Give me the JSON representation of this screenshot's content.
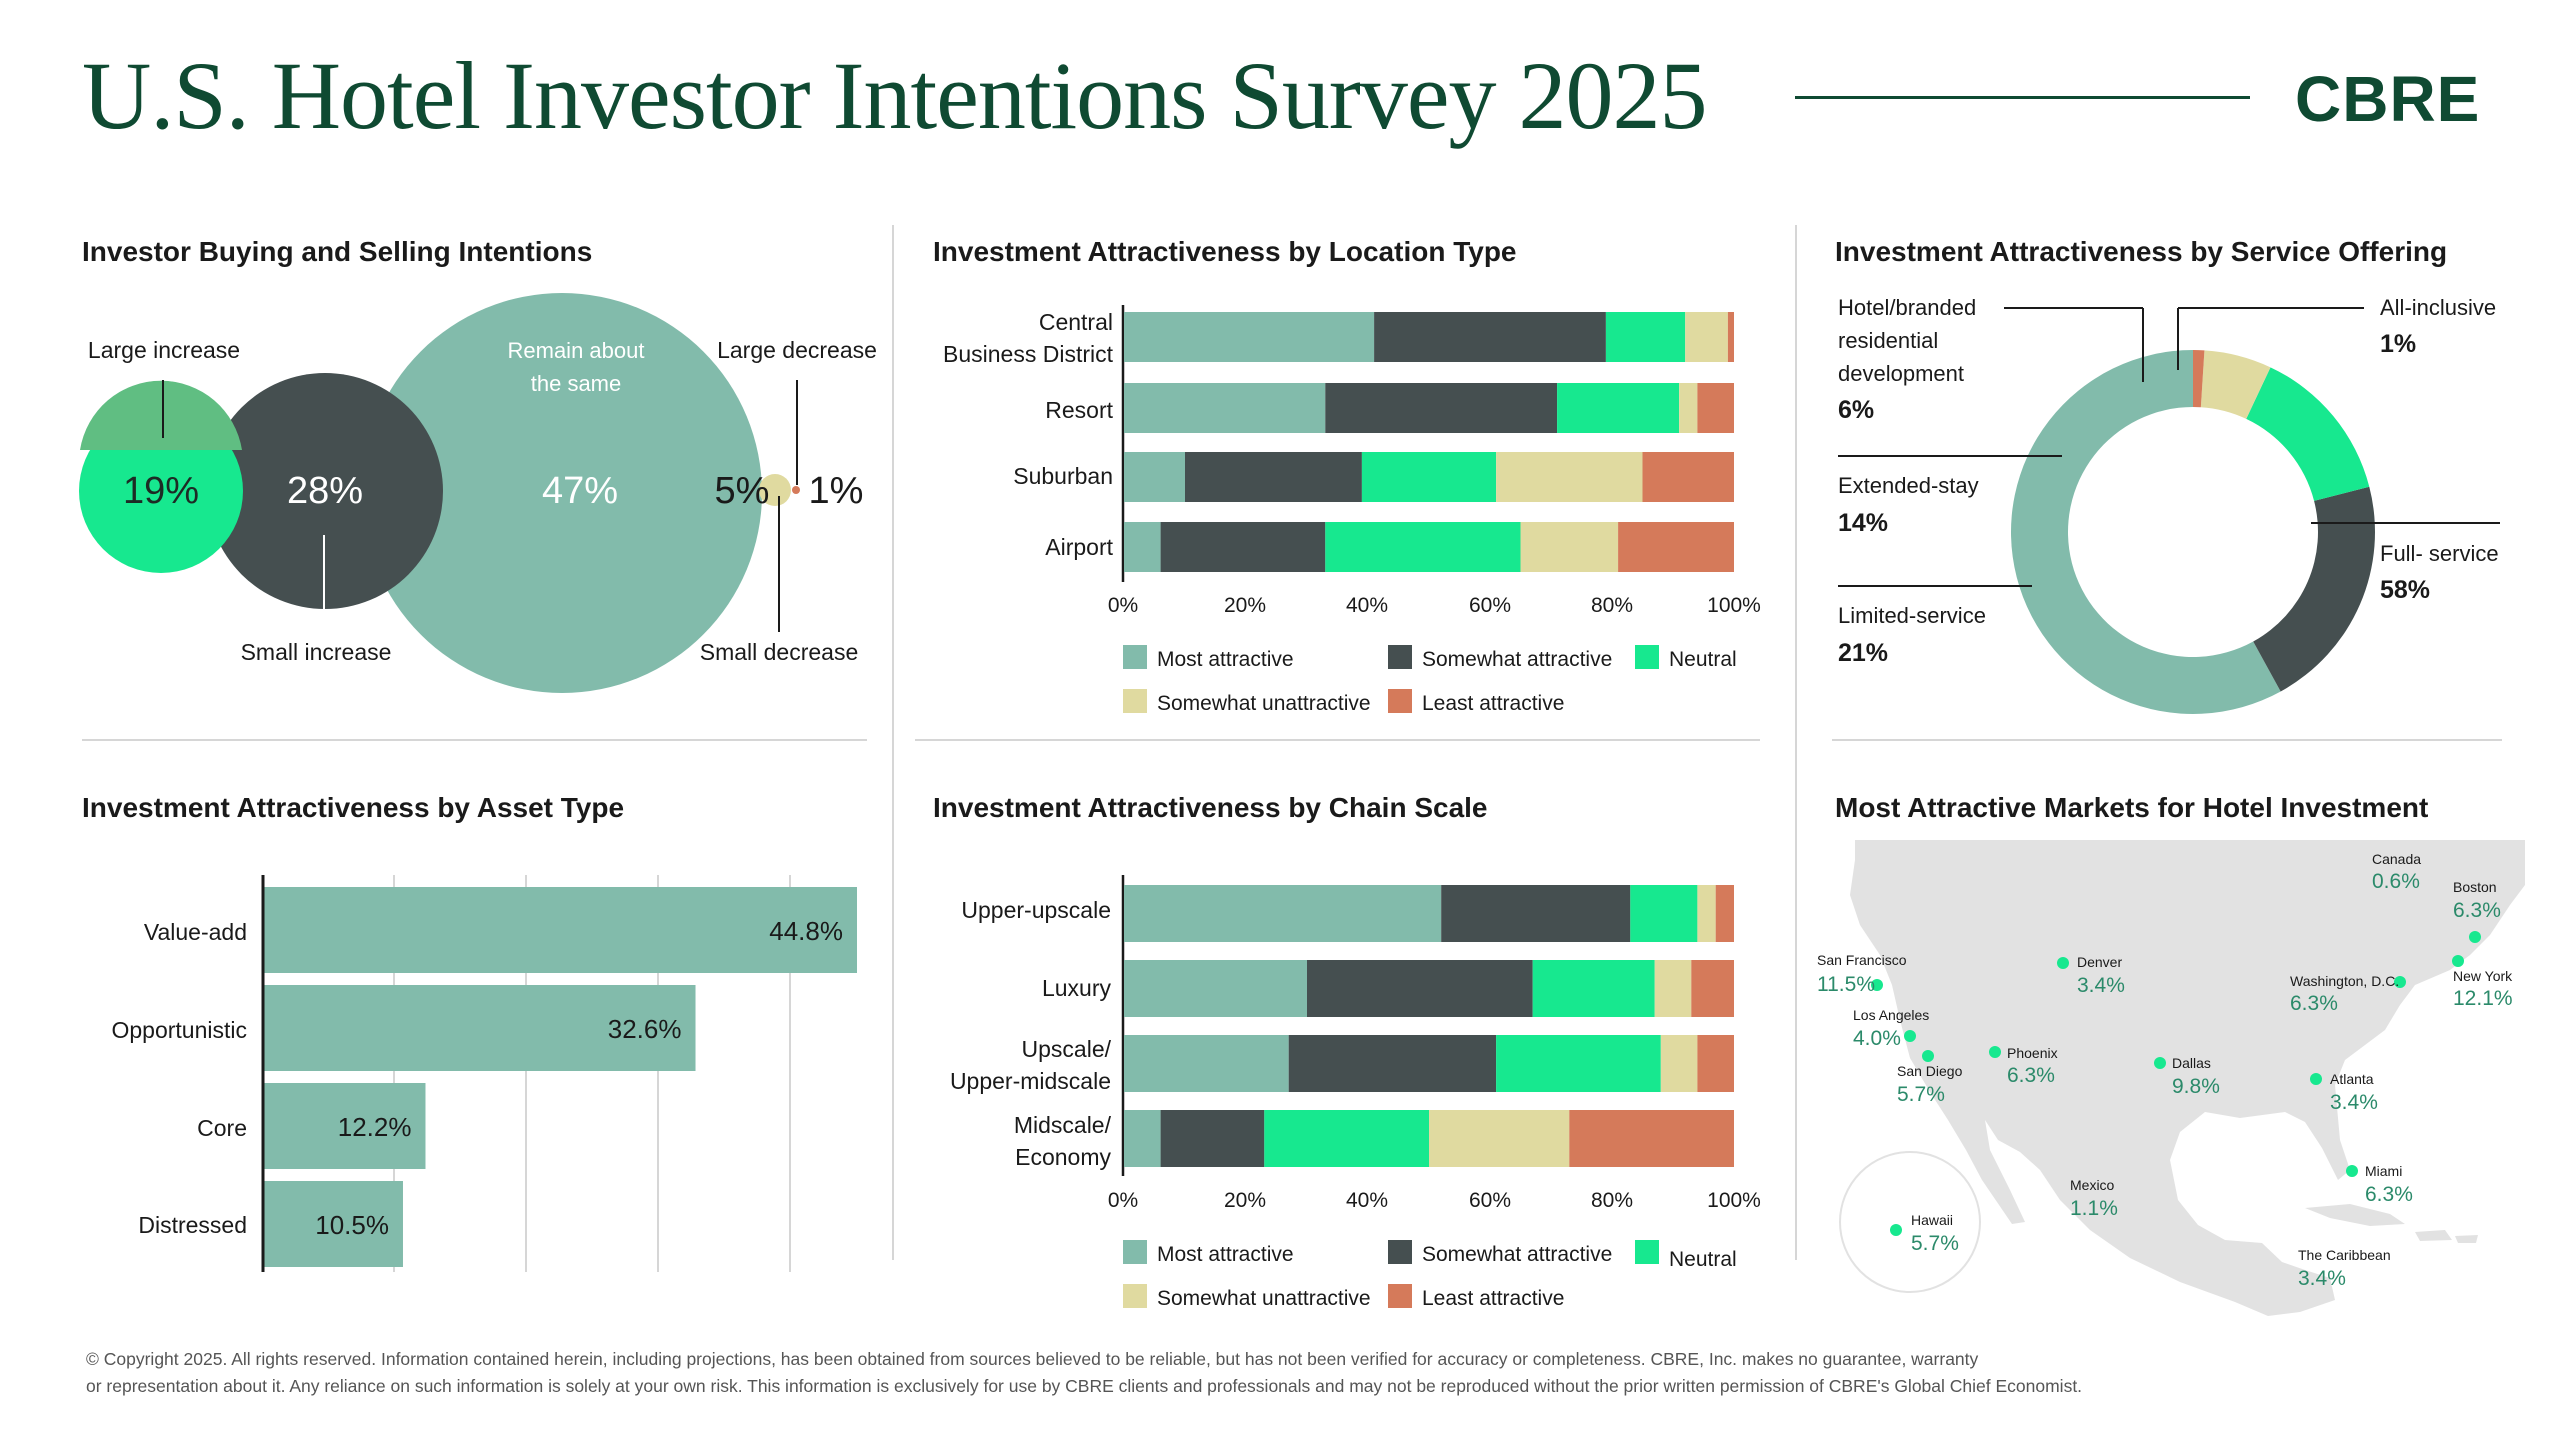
{
  "header": {
    "title": "U.S. Hotel Investor Intentions Survey 2025",
    "brand": "CBRE"
  },
  "colors": {
    "brand": "#0f4a32",
    "most_attractive": "#82bbab",
    "somewhat_attractive": "#454f50",
    "neutral": "#17e88f",
    "somewhat_unattractive": "#e0daa0",
    "least_attractive": "#d57a5a",
    "green_mid": "#60be82",
    "map_land": "#e2e2e2",
    "map_dot": "#17e88f"
  },
  "legend_labels": {
    "most": "Most attractive",
    "somewhat": "Somewhat attractive",
    "neutral": "Neutral",
    "unattractive": "Somewhat unattractive",
    "least": "Least attractive"
  },
  "panels": {
    "buying_selling": "Investor Buying and Selling Intentions",
    "location": "Investment Attractiveness by Location Type",
    "service": "Investment Attractiveness by Service Offering",
    "asset": "Investment Attractiveness by Asset Type",
    "chain": "Investment Attractiveness by Chain Scale",
    "markets": "Most Attractive Markets for Hotel Investment"
  },
  "chart_data": [
    {
      "id": "buying_selling",
      "type": "bubble",
      "items": [
        {
          "label": "Large increase",
          "value": 19,
          "display": "19%"
        },
        {
          "label": "Small increase",
          "value": 28,
          "display": "28%"
        },
        {
          "label": "Remain about the same",
          "value": 47,
          "display": "47%"
        },
        {
          "label": "Small decrease",
          "value": 5,
          "display": "5%"
        },
        {
          "label": "Large decrease",
          "value": 1,
          "display": "1%"
        }
      ],
      "label_lines": {
        "remain": [
          "Remain about",
          "the same"
        ]
      }
    },
    {
      "id": "location",
      "type": "bar",
      "orientation": "horizontal",
      "stacked": true,
      "categories": [
        [
          "Central",
          "Business District"
        ],
        [
          "Resort"
        ],
        [
          "Suburban"
        ],
        [
          "Airport"
        ]
      ],
      "series": [
        {
          "name": "Most attractive",
          "values": [
            41,
            33,
            10,
            6
          ]
        },
        {
          "name": "Somewhat attractive",
          "values": [
            38,
            38,
            29,
            27
          ]
        },
        {
          "name": "Neutral",
          "values": [
            13,
            20,
            22,
            32
          ]
        },
        {
          "name": "Somewhat unattractive",
          "values": [
            7,
            3,
            24,
            16
          ]
        },
        {
          "name": "Least attractive",
          "values": [
            1,
            6,
            15,
            19
          ]
        }
      ],
      "xlim": [
        0,
        100
      ],
      "xticks": [
        "0%",
        "20%",
        "40%",
        "60%",
        "80%",
        "100%"
      ],
      "legend": "bottom"
    },
    {
      "id": "service",
      "type": "pie",
      "donut": true,
      "slices": [
        {
          "label": "Full- service",
          "value": 58,
          "display": "58%"
        },
        {
          "label": "Limited-service",
          "value": 21,
          "display": "21%"
        },
        {
          "label": "Extended-stay",
          "value": 14,
          "display": "14%"
        },
        {
          "label": "Hotel/branded residential development",
          "value": 6,
          "display": "6%"
        },
        {
          "label": "All-inclusive",
          "value": 1,
          "display": "1%"
        }
      ],
      "label_lines": {
        "hotel": [
          "Hotel/branded",
          "residential",
          "development"
        ]
      }
    },
    {
      "id": "asset",
      "type": "bar",
      "orientation": "horizontal",
      "categories": [
        "Value-add",
        "Opportunistic",
        "Core",
        "Distressed"
      ],
      "values": [
        44.8,
        32.6,
        12.2,
        10.5
      ],
      "labels": [
        "44.8%",
        "32.6%",
        "12.2%",
        "10.5%"
      ]
    },
    {
      "id": "chain",
      "type": "bar",
      "orientation": "horizontal",
      "stacked": true,
      "categories": [
        [
          "Upper-upscale"
        ],
        [
          "Luxury"
        ],
        [
          "Upscale/",
          "Upper-midscale"
        ],
        [
          "Midscale/",
          "Economy"
        ]
      ],
      "series": [
        {
          "name": "Most attractive",
          "values": [
            52,
            30,
            27,
            6
          ]
        },
        {
          "name": "Somewhat attractive",
          "values": [
            31,
            37,
            34,
            17
          ]
        },
        {
          "name": "Neutral",
          "values": [
            11,
            20,
            27,
            27
          ]
        },
        {
          "name": "Somewhat unattractive",
          "values": [
            3,
            6,
            6,
            23
          ]
        },
        {
          "name": "Least attractive",
          "values": [
            3,
            7,
            6,
            27
          ]
        }
      ],
      "xlim": [
        0,
        100
      ],
      "xticks": [
        "0%",
        "20%",
        "40%",
        "60%",
        "80%",
        "100%"
      ],
      "legend": "bottom"
    },
    {
      "id": "markets",
      "type": "map",
      "markets": [
        {
          "name": "Canada",
          "value": "0.6%"
        },
        {
          "name": "Boston",
          "value": "6.3%"
        },
        {
          "name": "San Francisco",
          "value": "11.5%"
        },
        {
          "name": "Denver",
          "value": "3.4%"
        },
        {
          "name": "Washington, D.C.",
          "value": "6.3%"
        },
        {
          "name": "New York",
          "value": "12.1%"
        },
        {
          "name": "Los Angeles",
          "value": "4.0%"
        },
        {
          "name": "San Diego",
          "value": "5.7%"
        },
        {
          "name": "Phoenix",
          "value": "6.3%"
        },
        {
          "name": "Dallas",
          "value": "9.8%"
        },
        {
          "name": "Atlanta",
          "value": "3.4%"
        },
        {
          "name": "Miami",
          "value": "6.3%"
        },
        {
          "name": "Mexico",
          "value": "1.1%"
        },
        {
          "name": "Hawaii",
          "value": "5.7%"
        },
        {
          "name": "The Caribbean",
          "value": "3.4%"
        }
      ]
    }
  ],
  "footer": {
    "line1": "© Copyright 2025. All rights reserved. Information contained herein, including projections, has been obtained from sources believed to be reliable, but has not been verified for accuracy or completeness. CBRE, Inc. makes no guarantee, warranty",
    "line2": "or representation about it. Any reliance on such information is solely at your own risk. This information is exclusively for use by CBRE clients and professionals and may not be reproduced without the prior written permission of CBRE's Global Chief Economist."
  }
}
